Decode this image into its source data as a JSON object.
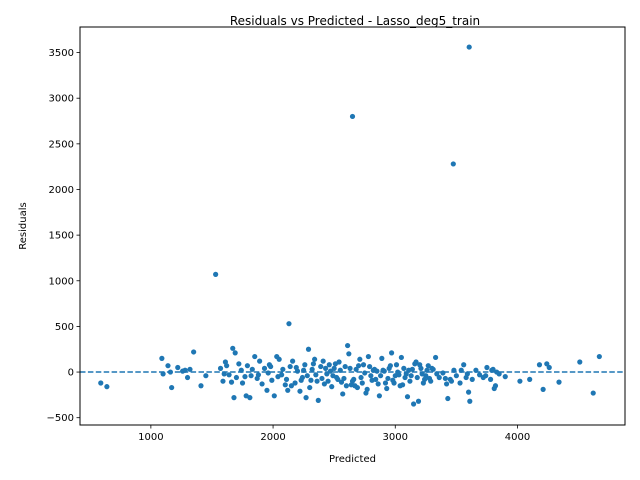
{
  "chart_data": {
    "type": "scatter",
    "title": "Residuals vs Predicted - Lasso_deg5_train",
    "xlabel": "Predicted",
    "ylabel": "Residuals",
    "xlim": [
      420,
      4880
    ],
    "ylim": [
      -580,
      3780
    ],
    "xticks": [
      1000,
      2000,
      3000,
      4000
    ],
    "yticks": [
      -500,
      0,
      500,
      1000,
      1500,
      2000,
      2500,
      3000,
      3500
    ],
    "x_tick_labels": [
      "1000",
      "2000",
      "3000",
      "4000"
    ],
    "y_tick_labels": [
      "−500",
      "0",
      "500",
      "1000",
      "1500",
      "2000",
      "2500",
      "3000",
      "3500"
    ],
    "reference_line": {
      "y": 0,
      "style": "dashed",
      "color": "#1f77b4"
    },
    "point_color": "#1f77b4",
    "grid": false,
    "points": [
      [
        3605,
        3560
      ],
      [
        2650,
        2800
      ],
      [
        3475,
        2280
      ],
      [
        1530,
        1070
      ],
      [
        2130,
        530
      ],
      [
        1090,
        150
      ],
      [
        1140,
        70
      ],
      [
        1170,
        -170
      ],
      [
        1220,
        50
      ],
      [
        1280,
        20
      ],
      [
        1300,
        -60
      ],
      [
        1350,
        220
      ],
      [
        1410,
        -150
      ],
      [
        1450,
        -40
      ],
      [
        590,
        -120
      ],
      [
        640,
        -160
      ],
      [
        1100,
        -20
      ],
      [
        1570,
        40
      ],
      [
        1590,
        -100
      ],
      [
        1610,
        110
      ],
      [
        1640,
        -30
      ],
      [
        1670,
        260
      ],
      [
        1690,
        210
      ],
      [
        1700,
        -60
      ],
      [
        1720,
        90
      ],
      [
        1750,
        -120
      ],
      [
        1770,
        -50
      ],
      [
        1790,
        70
      ],
      [
        1810,
        -280
      ],
      [
        1830,
        30
      ],
      [
        1850,
        170
      ],
      [
        1870,
        -70
      ],
      [
        1890,
        120
      ],
      [
        1910,
        -130
      ],
      [
        1930,
        40
      ],
      [
        1950,
        -200
      ],
      [
        1970,
        80
      ],
      [
        1990,
        -90
      ],
      [
        2010,
        -260
      ],
      [
        2030,
        170
      ],
      [
        2050,
        140
      ],
      [
        2070,
        -30
      ],
      [
        1680,
        -280
      ],
      [
        1780,
        -260
      ],
      [
        1600,
        -20
      ],
      [
        1980,
        60
      ],
      [
        2040,
        -50
      ],
      [
        2100,
        -140
      ],
      [
        2120,
        -200
      ],
      [
        2140,
        60
      ],
      [
        2160,
        120
      ],
      [
        2180,
        -120
      ],
      [
        2200,
        10
      ],
      [
        2220,
        -210
      ],
      [
        2240,
        -60
      ],
      [
        2260,
        80
      ],
      [
        2270,
        -280
      ],
      [
        2290,
        250
      ],
      [
        2300,
        -170
      ],
      [
        2320,
        30
      ],
      [
        2340,
        140
      ],
      [
        2360,
        -100
      ],
      [
        2370,
        -310
      ],
      [
        2390,
        60
      ],
      [
        2410,
        120
      ],
      [
        2420,
        -130
      ],
      [
        2440,
        -20
      ],
      [
        2460,
        80
      ],
      [
        2480,
        -160
      ],
      [
        2500,
        40
      ],
      [
        2520,
        -60
      ],
      [
        2540,
        110
      ],
      [
        2560,
        -110
      ],
      [
        2570,
        -240
      ],
      [
        2590,
        60
      ],
      [
        2610,
        290
      ],
      [
        2620,
        200
      ],
      [
        2640,
        -140
      ],
      [
        2660,
        -80
      ],
      [
        2680,
        30
      ],
      [
        2690,
        -170
      ],
      [
        2710,
        140
      ],
      [
        2720,
        -60
      ],
      [
        2740,
        80
      ],
      [
        2760,
        -230
      ],
      [
        2780,
        170
      ],
      [
        2800,
        -40
      ],
      [
        2820,
        20
      ],
      [
        2840,
        -80
      ],
      [
        2860,
        -130
      ],
      [
        2870,
        -260
      ],
      [
        2890,
        150
      ],
      [
        2910,
        10
      ],
      [
        2930,
        -180
      ],
      [
        2950,
        40
      ],
      [
        2970,
        210
      ],
      [
        2990,
        -120
      ],
      [
        3010,
        80
      ],
      [
        3030,
        -30
      ],
      [
        3050,
        160
      ],
      [
        3060,
        -140
      ],
      [
        3080,
        -60
      ],
      [
        3100,
        -270
      ],
      [
        3120,
        -100
      ],
      [
        3140,
        30
      ],
      [
        3150,
        -350
      ],
      [
        3170,
        110
      ],
      [
        3190,
        -320
      ],
      [
        3210,
        40
      ],
      [
        3230,
        -120
      ],
      [
        3250,
        -40
      ],
      [
        3270,
        70
      ],
      [
        3290,
        -100
      ],
      [
        3310,
        30
      ],
      [
        3330,
        160
      ],
      [
        3360,
        -60
      ],
      [
        3390,
        -10
      ],
      [
        3420,
        -130
      ],
      [
        3430,
        -290
      ],
      [
        3450,
        -80
      ],
      [
        3480,
        20
      ],
      [
        3500,
        -40
      ],
      [
        3530,
        -120
      ],
      [
        3560,
        80
      ],
      [
        3580,
        -60
      ],
      [
        3600,
        -220
      ],
      [
        3610,
        -320
      ],
      [
        3630,
        -80
      ],
      [
        3660,
        20
      ],
      [
        3690,
        -30
      ],
      [
        3720,
        -60
      ],
      [
        3750,
        50
      ],
      [
        3780,
        -80
      ],
      [
        3800,
        30
      ],
      [
        3810,
        -180
      ],
      [
        3820,
        -150
      ],
      [
        3830,
        0
      ],
      [
        3850,
        -20
      ],
      [
        3900,
        -50
      ],
      [
        4020,
        -100
      ],
      [
        4100,
        -80
      ],
      [
        4180,
        80
      ],
      [
        4210,
        -190
      ],
      [
        4240,
        90
      ],
      [
        4260,
        50
      ],
      [
        4340,
        -110
      ],
      [
        4510,
        110
      ],
      [
        4620,
        -230
      ],
      [
        4670,
        170
      ],
      [
        1160,
        0
      ],
      [
        1260,
        10
      ],
      [
        1320,
        30
      ],
      [
        1620,
        70
      ],
      [
        1660,
        -110
      ],
      [
        1740,
        20
      ],
      [
        1820,
        -40
      ],
      [
        1880,
        -30
      ],
      [
        1960,
        -10
      ],
      [
        2080,
        30
      ],
      [
        2110,
        -80
      ],
      [
        2150,
        -150
      ],
      [
        2190,
        50
      ],
      [
        2230,
        -90
      ],
      [
        2250,
        20
      ],
      [
        2280,
        -40
      ],
      [
        2310,
        -90
      ],
      [
        2330,
        90
      ],
      [
        2350,
        -30
      ],
      [
        2400,
        -70
      ],
      [
        2430,
        40
      ],
      [
        2450,
        -100
      ],
      [
        2470,
        10
      ],
      [
        2490,
        -40
      ],
      [
        2510,
        90
      ],
      [
        2530,
        -80
      ],
      [
        2550,
        20
      ],
      [
        2580,
        -70
      ],
      [
        2600,
        -150
      ],
      [
        2630,
        40
      ],
      [
        2650,
        -100
      ],
      [
        2670,
        -150
      ],
      [
        2700,
        70
      ],
      [
        2730,
        -120
      ],
      [
        2750,
        -10
      ],
      [
        2770,
        -190
      ],
      [
        2790,
        60
      ],
      [
        2810,
        -90
      ],
      [
        2830,
        30
      ],
      [
        2850,
        10
      ],
      [
        2880,
        -40
      ],
      [
        2900,
        20
      ],
      [
        2920,
        -120
      ],
      [
        2940,
        -70
      ],
      [
        2960,
        70
      ],
      [
        2980,
        -90
      ],
      [
        3000,
        -40
      ],
      [
        3020,
        0
      ],
      [
        3040,
        -150
      ],
      [
        3070,
        40
      ],
      [
        3090,
        -20
      ],
      [
        3110,
        20
      ],
      [
        3130,
        -40
      ],
      [
        3160,
        90
      ],
      [
        3180,
        -60
      ],
      [
        3200,
        80
      ],
      [
        3220,
        -20
      ],
      [
        3240,
        -80
      ],
      [
        3260,
        20
      ],
      [
        3280,
        -70
      ],
      [
        3300,
        40
      ],
      [
        3340,
        -20
      ],
      [
        3410,
        -70
      ],
      [
        3460,
        -100
      ],
      [
        3540,
        20
      ],
      [
        3590,
        -20
      ],
      [
        3740,
        -40
      ],
      [
        3790,
        20
      ]
    ]
  }
}
